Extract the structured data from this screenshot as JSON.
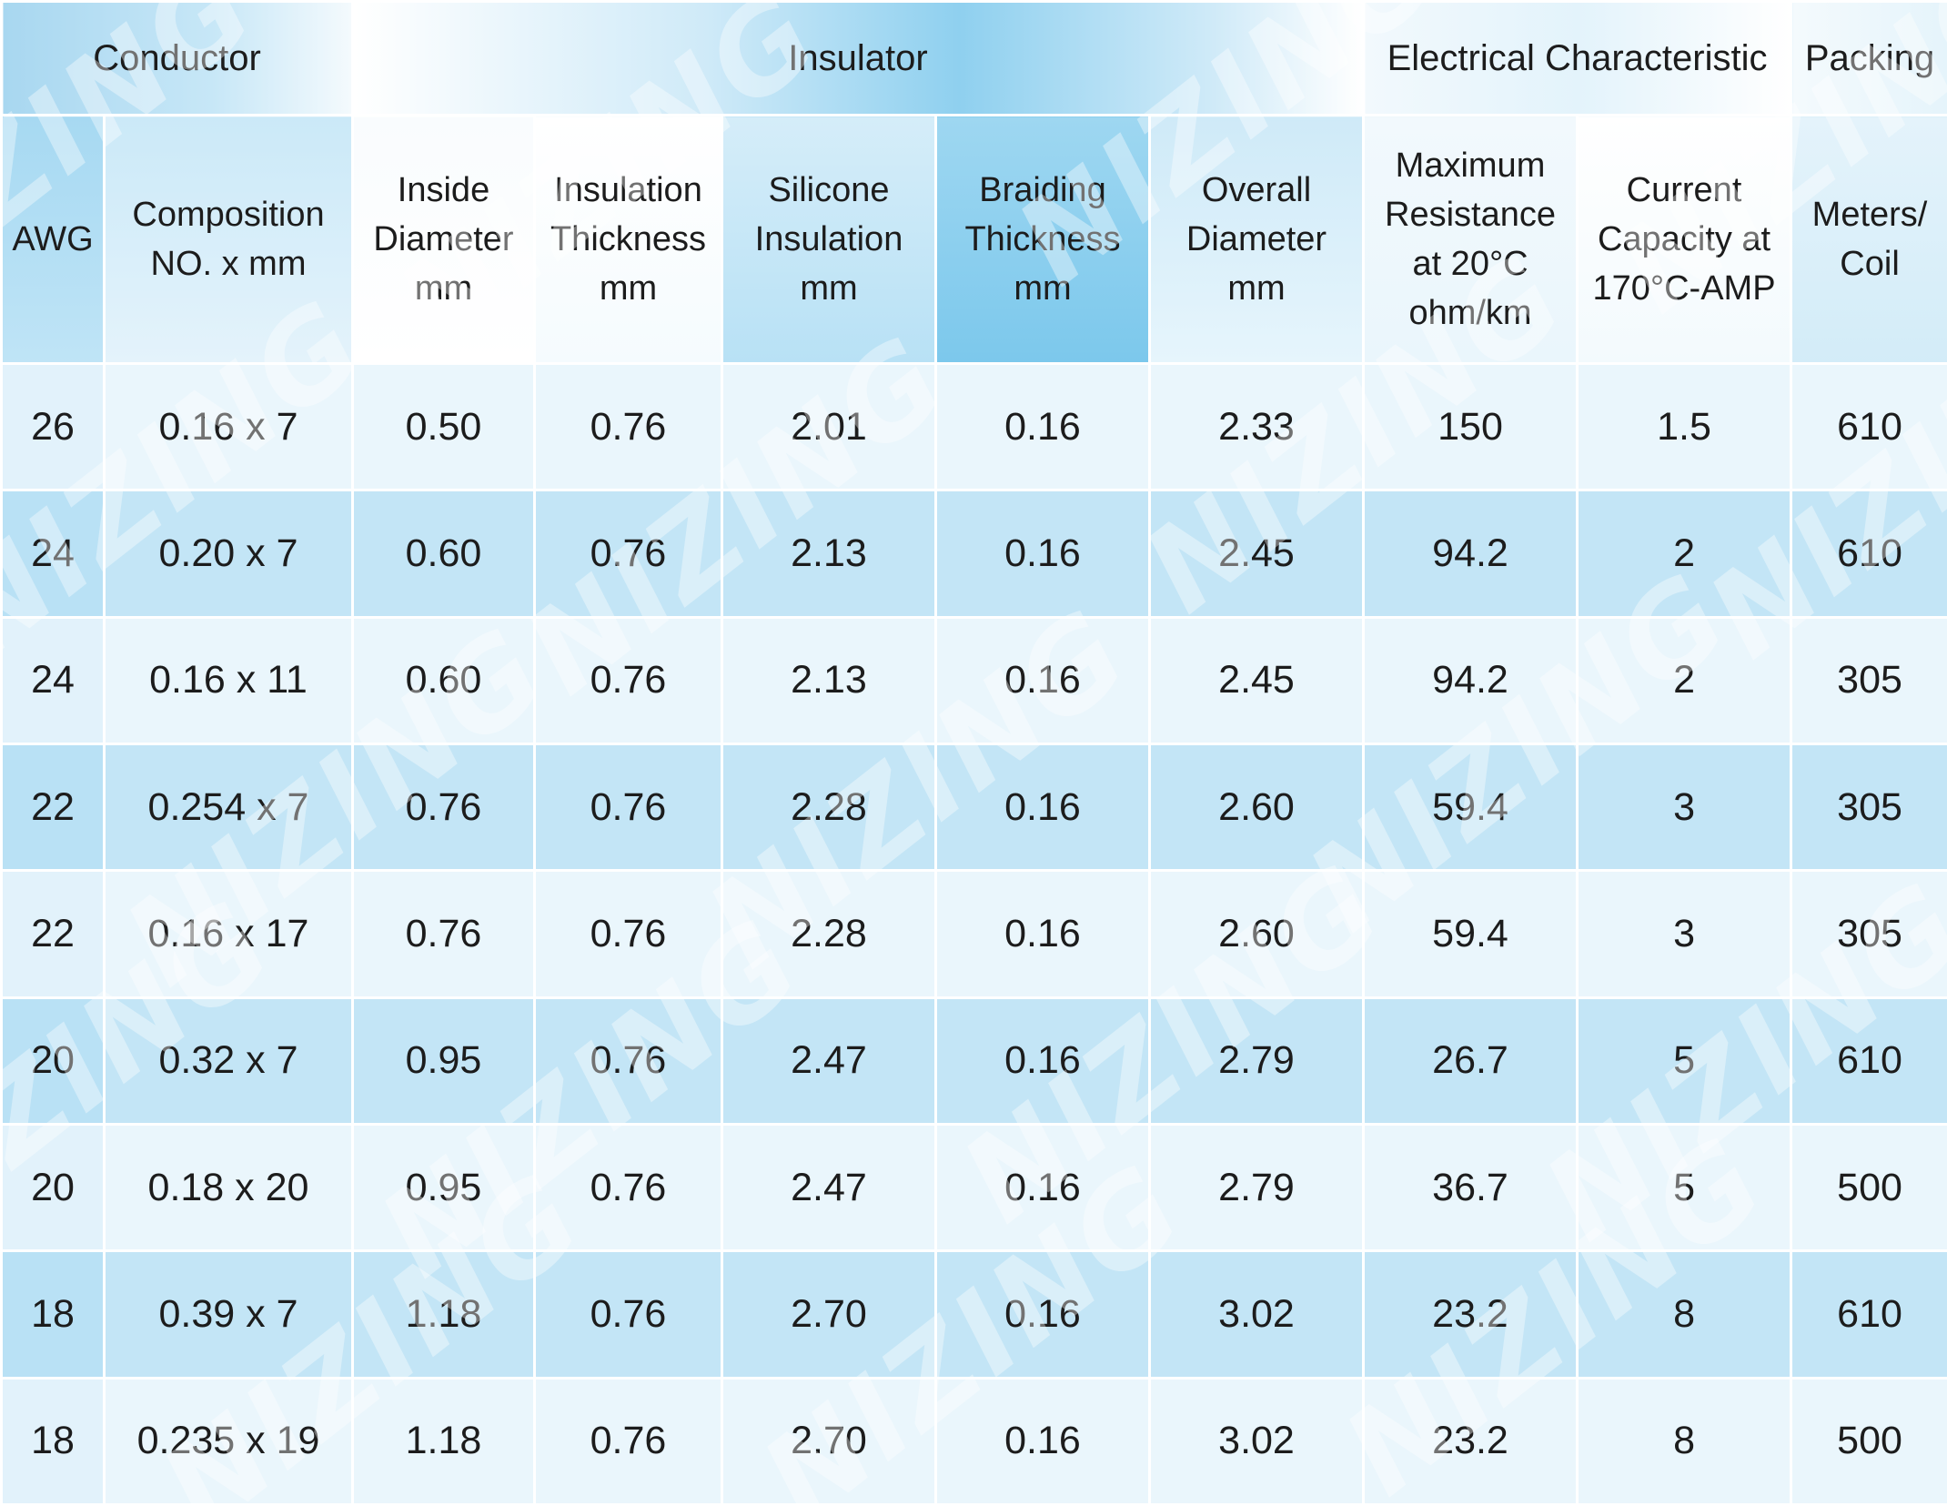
{
  "watermark": {
    "text": "NIZING"
  },
  "groups": {
    "conductor": "Conductor",
    "insulator": "Insulator",
    "electrical": "Electrical Characteristic",
    "packing": "Packing"
  },
  "columns": {
    "awg": [
      "AWG"
    ],
    "composition": [
      "Composition",
      "NO. x mm"
    ],
    "inside_diameter": [
      "Inside",
      "Diameter",
      "mm"
    ],
    "insulation_thickness": [
      "Insulation",
      "Thickness",
      "mm"
    ],
    "silicone_insulation": [
      "Silicone",
      "Insulation",
      "mm"
    ],
    "braiding_thickness": [
      "Braiding",
      "Thickness",
      "mm"
    ],
    "overall_diameter": [
      "Overall",
      "Diameter",
      "mm"
    ],
    "max_resistance": [
      "Maximum",
      "Resistance",
      "at 20°C",
      "ohm/km"
    ],
    "current_capacity": [
      "Current",
      "Capacity at",
      "170°C-AMP"
    ],
    "meters_coil": [
      "Meters/",
      "Coil"
    ]
  },
  "rows": [
    [
      "26",
      "0.16 x 7",
      "0.50",
      "0.76",
      "2.01",
      "0.16",
      "2.33",
      "150",
      "1.5",
      "610"
    ],
    [
      "24",
      "0.20 x 7",
      "0.60",
      "0.76",
      "2.13",
      "0.16",
      "2.45",
      "94.2",
      "2",
      "610"
    ],
    [
      "24",
      "0.16 x 11",
      "0.60",
      "0.76",
      "2.13",
      "0.16",
      "2.45",
      "94.2",
      "2",
      "305"
    ],
    [
      "22",
      "0.254 x 7",
      "0.76",
      "0.76",
      "2.28",
      "0.16",
      "2.60",
      "59.4",
      "3",
      "305"
    ],
    [
      "22",
      "0.16 x 17",
      "0.76",
      "0.76",
      "2.28",
      "0.16",
      "2.60",
      "59.4",
      "3",
      "305"
    ],
    [
      "20",
      "0.32 x 7",
      "0.95",
      "0.76",
      "2.47",
      "0.16",
      "2.79",
      "26.7",
      "5",
      "610"
    ],
    [
      "20",
      "0.18 x 20",
      "0.95",
      "0.76",
      "2.47",
      "0.16",
      "2.79",
      "36.7",
      "5",
      "500"
    ],
    [
      "18",
      "0.39 x 7",
      "1.18",
      "0.76",
      "2.70",
      "0.16",
      "3.02",
      "23.2",
      "8",
      "610"
    ],
    [
      "18",
      "0.235 x 19",
      "1.18",
      "0.76",
      "2.70",
      "0.16",
      "3.02",
      "23.2",
      "8",
      "500"
    ]
  ]
}
